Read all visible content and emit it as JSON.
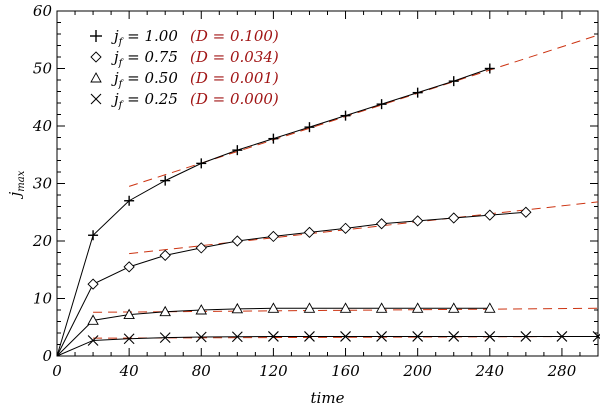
{
  "chart_data": {
    "type": "scatter",
    "title": "",
    "xlabel": "time",
    "ylabel": "j_max",
    "ylabel_main": "j",
    "ylabel_sub": "max",
    "xlim": [
      0,
      300
    ],
    "ylim": [
      0,
      60
    ],
    "xticks": [
      0,
      40,
      80,
      120,
      160,
      200,
      240,
      280
    ],
    "yticks": [
      0,
      10,
      20,
      30,
      40,
      50,
      60
    ],
    "fit_color": "#cc3311",
    "line_color": "#000000",
    "legend_position": "top-left",
    "series": [
      {
        "marker": "plus",
        "label_main": "j",
        "label_sub": "f",
        "label_value": " = 1.00",
        "label_d": "(D = 0.100)",
        "x": [
          0,
          20,
          40,
          60,
          80,
          100,
          120,
          140,
          160,
          180,
          200,
          220,
          240
        ],
        "y": [
          0,
          21,
          27,
          30.5,
          33.5,
          35.8,
          37.8,
          39.8,
          41.8,
          43.8,
          45.8,
          47.8,
          50
        ],
        "fit": [
          [
            40,
            29.5
          ],
          [
            300,
            55.8
          ]
        ]
      },
      {
        "marker": "diamond",
        "label_main": "j",
        "label_sub": "f",
        "label_value": " = 0.75",
        "label_d": "(D = 0.034)",
        "x": [
          0,
          20,
          40,
          60,
          80,
          100,
          120,
          140,
          160,
          180,
          200,
          220,
          240,
          260
        ],
        "y": [
          0,
          12.5,
          15.5,
          17.5,
          18.8,
          20,
          20.8,
          21.5,
          22.2,
          23,
          23.5,
          24,
          24.5,
          25
        ],
        "fit": [
          [
            40,
            17.8
          ],
          [
            300,
            26.8
          ]
        ]
      },
      {
        "marker": "triangle",
        "label_main": "j",
        "label_sub": "f",
        "label_value": " = 0.50",
        "label_d": "(D = 0.001)",
        "x": [
          0,
          20,
          40,
          60,
          80,
          100,
          120,
          140,
          160,
          180,
          200,
          220,
          240
        ],
        "y": [
          0,
          6.2,
          7.2,
          7.7,
          8,
          8.2,
          8.3,
          8.3,
          8.3,
          8.3,
          8.3,
          8.3,
          8.3
        ],
        "fit": [
          [
            20,
            7.6
          ],
          [
            300,
            8.3
          ]
        ]
      },
      {
        "marker": "cross",
        "label_main": "j",
        "label_sub": "f",
        "label_value": " = 0.25",
        "label_d": "(D = 0.000)",
        "x": [
          0,
          20,
          40,
          60,
          80,
          100,
          120,
          140,
          160,
          180,
          200,
          220,
          240,
          260,
          280,
          300
        ],
        "y": [
          0,
          2.7,
          3.0,
          3.2,
          3.3,
          3.35,
          3.4,
          3.4,
          3.4,
          3.4,
          3.4,
          3.4,
          3.4,
          3.4,
          3.4,
          3.4
        ],
        "fit": [
          [
            20,
            3.1
          ],
          [
            300,
            3.4
          ]
        ]
      }
    ]
  }
}
